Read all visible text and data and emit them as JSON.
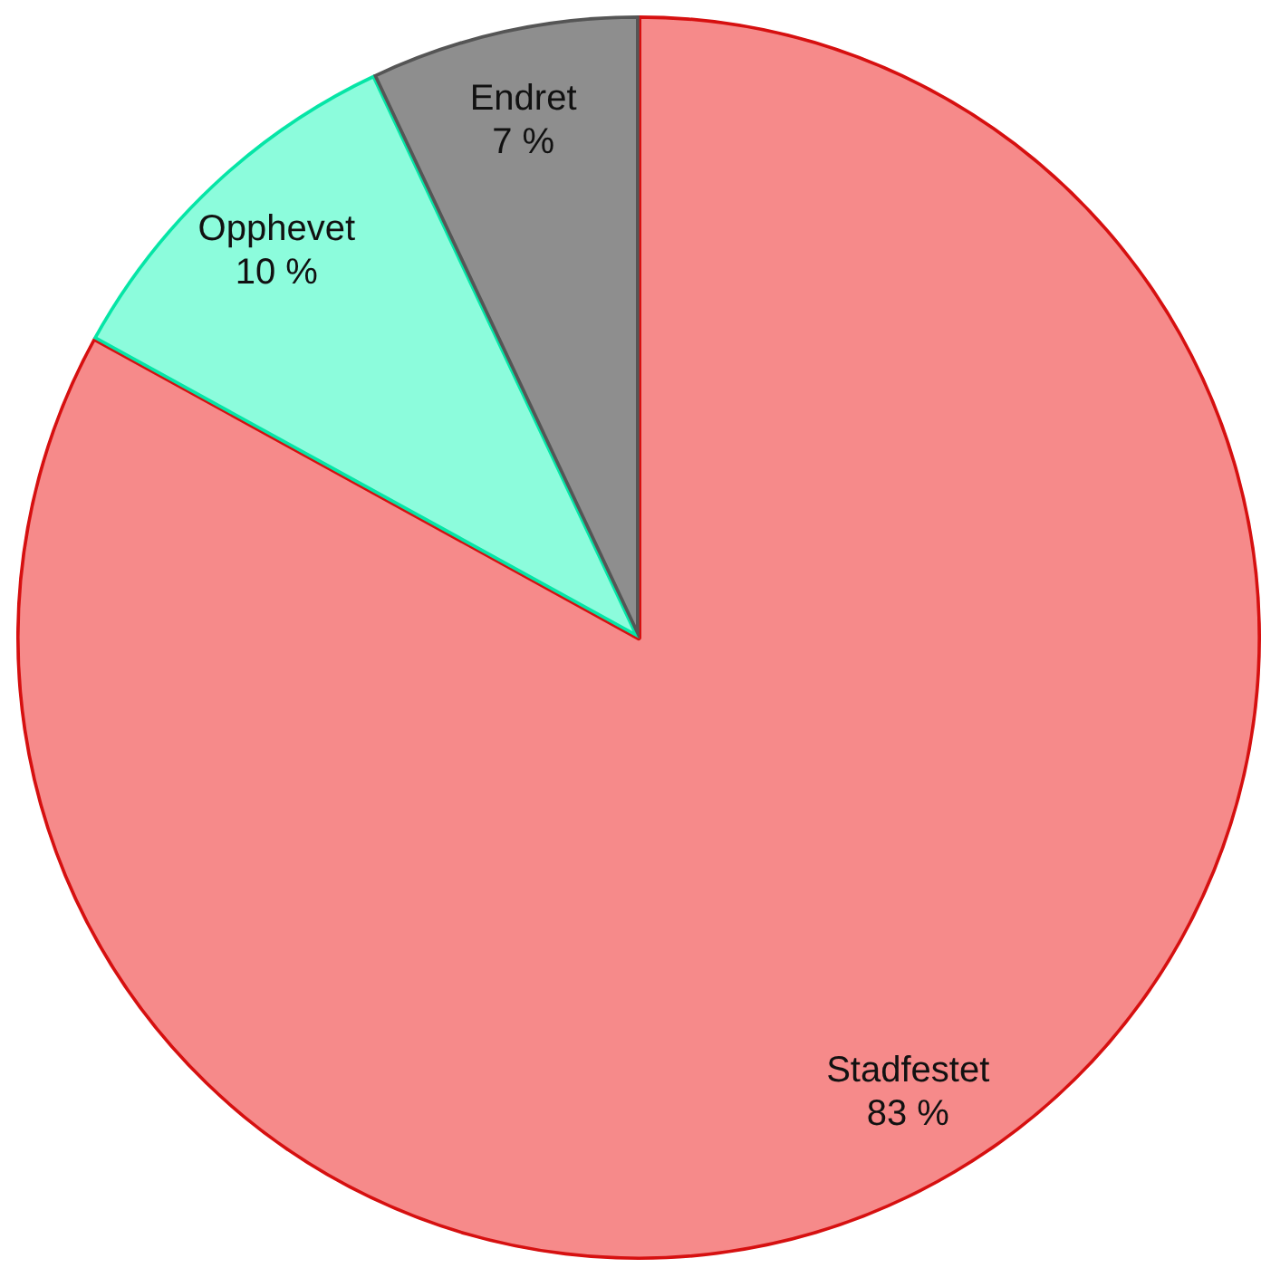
{
  "chart_data": {
    "type": "pie",
    "categories": [
      "Stadfestet",
      "Opphevet",
      "Endret"
    ],
    "values": [
      83,
      10,
      7
    ],
    "colors": [
      "#f68a8a",
      "#8cfcdc",
      "#8e8e8e"
    ],
    "value_labels": [
      "83 %",
      "10 %",
      "7 %"
    ]
  }
}
